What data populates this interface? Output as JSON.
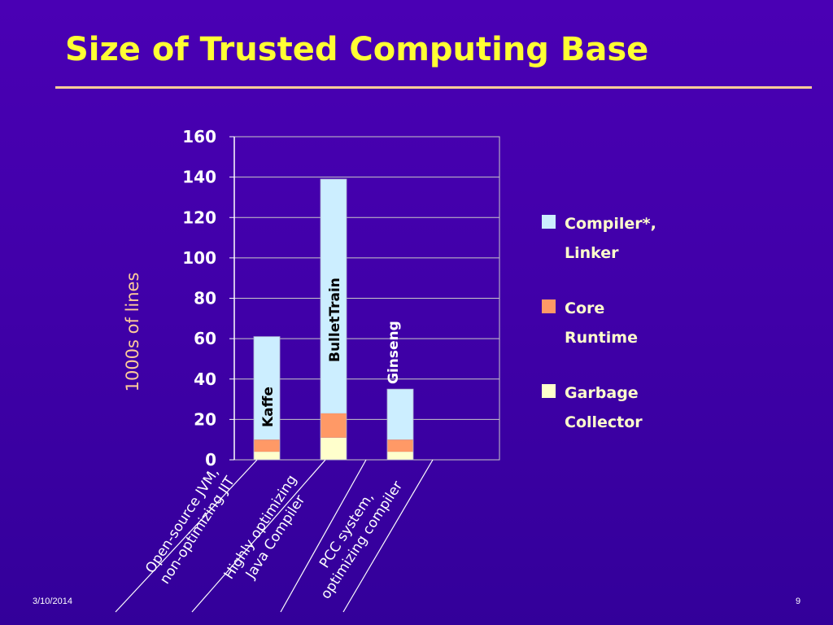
{
  "slide": {
    "title": "Size of Trusted Computing Base",
    "date": "3/10/2014",
    "page_number": "9"
  },
  "chart_data": {
    "type": "bar",
    "stacked": true,
    "ylabel": "1000s of lines",
    "ylim": [
      0,
      160
    ],
    "yticks": [
      0,
      20,
      40,
      60,
      80,
      100,
      120,
      140,
      160
    ],
    "grid": true,
    "legend_position": "right",
    "categories": [
      "Open-source JVM, non-optimizing JIT",
      "Highly optimizing Java Compiler",
      "PCC system, optimizing compiler"
    ],
    "category_label_lines": [
      [
        "Open-source JVM,",
        "non-optimizing JIT"
      ],
      [
        "Highly optimizing",
        "Java Compiler"
      ],
      [
        "PCC system,",
        "optimizing compiler"
      ]
    ],
    "bar_labels": [
      "Kaffe",
      "BulletTrain",
      "Ginseng"
    ],
    "series": [
      {
        "name": "Garbage Collector",
        "legend_lines": [
          "Garbage",
          "Collector"
        ],
        "color": "#ffffcc",
        "values": [
          4,
          11,
          4
        ]
      },
      {
        "name": "Core Runtime",
        "legend_lines": [
          "Core",
          "Runtime"
        ],
        "color": "#ff9966",
        "values": [
          6,
          12,
          6
        ]
      },
      {
        "name": "Compiler*, Linker",
        "legend_lines": [
          "Compiler*,",
          "Linker"
        ],
        "color": "#cceeff",
        "values": [
          51,
          116,
          25
        ]
      }
    ]
  },
  "colors": {
    "background": "#4000a8",
    "title": "#ffff33",
    "axis_text": "#ffffff",
    "ylabel": "#ffcc99",
    "legend_text": "#ffffcc",
    "rule": "#ffcc99"
  }
}
